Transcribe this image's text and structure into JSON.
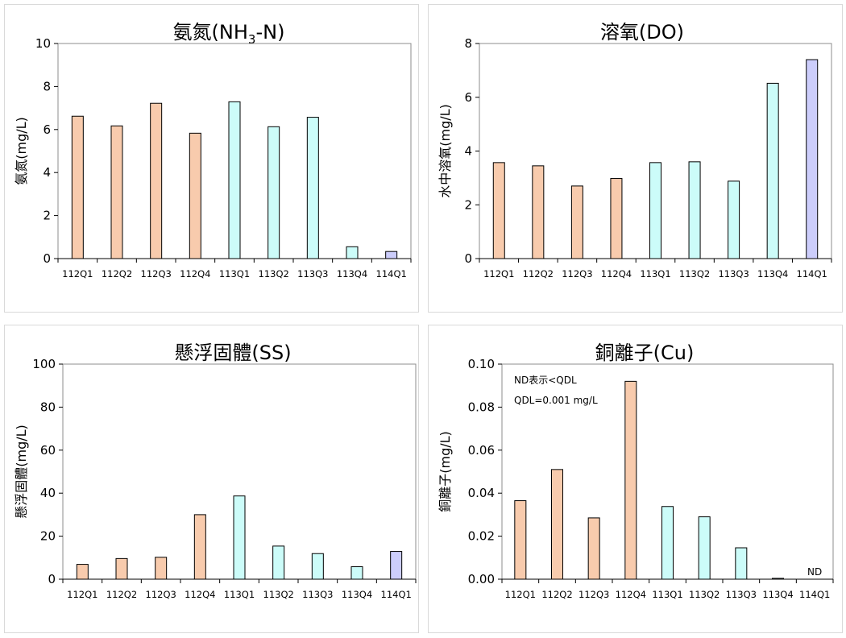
{
  "colors": {
    "y112": "#f8cbad",
    "y113": "#ccfcf9",
    "y114": "#cccdfb",
    "stroke": "#000000"
  },
  "chart_data": [
    {
      "type": "bar",
      "title": "氨氮(NH3-N)",
      "title_main": "氨氮(NH",
      "title_sub": "3",
      "title_tail": "-N)",
      "ylabel": "氨氮(mg/L)",
      "ylim": [
        0,
        10
      ],
      "yticks": [
        "0",
        "2",
        "4",
        "6",
        "8",
        "10"
      ],
      "categories": [
        "112Q1",
        "112Q2",
        "112Q3",
        "112Q4",
        "113Q1",
        "113Q2",
        "113Q3",
        "113Q4",
        "114Q1"
      ],
      "values": [
        6.62,
        6.17,
        7.22,
        5.83,
        7.29,
        6.13,
        6.57,
        0.55,
        0.33
      ]
    },
    {
      "type": "bar",
      "title": "溶氧(DO)",
      "ylabel": "水中溶氧(mg/L)",
      "ylim": [
        0,
        8
      ],
      "yticks": [
        "0",
        "2",
        "4",
        "6",
        "8"
      ],
      "categories": [
        "112Q1",
        "112Q2",
        "112Q3",
        "112Q4",
        "113Q1",
        "113Q2",
        "113Q3",
        "113Q4",
        "114Q1"
      ],
      "values": [
        3.57,
        3.45,
        2.7,
        2.98,
        3.57,
        3.6,
        2.88,
        6.52,
        7.4
      ]
    },
    {
      "type": "bar",
      "title": "懸浮固體(SS)",
      "ylabel": "懸浮固體(mg/L)",
      "ylim": [
        0,
        100
      ],
      "yticks": [
        "0",
        "20",
        "40",
        "60",
        "80",
        "100"
      ],
      "categories": [
        "112Q1",
        "112Q2",
        "112Q3",
        "112Q4",
        "113Q1",
        "113Q2",
        "113Q3",
        "113Q4",
        "114Q1"
      ],
      "values": [
        6.9,
        9.6,
        10.2,
        30.0,
        38.7,
        15.4,
        11.9,
        5.8,
        12.9
      ]
    },
    {
      "type": "bar",
      "title": "銅離子(Cu)",
      "ylabel": "銅離子(mg/L)",
      "ylim": [
        0,
        0.1
      ],
      "yticks": [
        "0.00",
        "0.02",
        "0.04",
        "0.06",
        "0.08",
        "0.10"
      ],
      "categories": [
        "112Q1",
        "112Q2",
        "112Q3",
        "112Q4",
        "113Q1",
        "113Q2",
        "113Q3",
        "113Q4",
        "114Q1"
      ],
      "values": [
        0.0365,
        0.051,
        0.0285,
        0.092,
        0.0338,
        0.029,
        0.0146,
        0.0004,
        null
      ],
      "value_labels": [
        "",
        "",
        "",
        "",
        "",
        "",
        "",
        "",
        "ND"
      ],
      "notes": [
        "ND表示<QDL",
        "QDL=0.001 mg/L"
      ]
    }
  ]
}
